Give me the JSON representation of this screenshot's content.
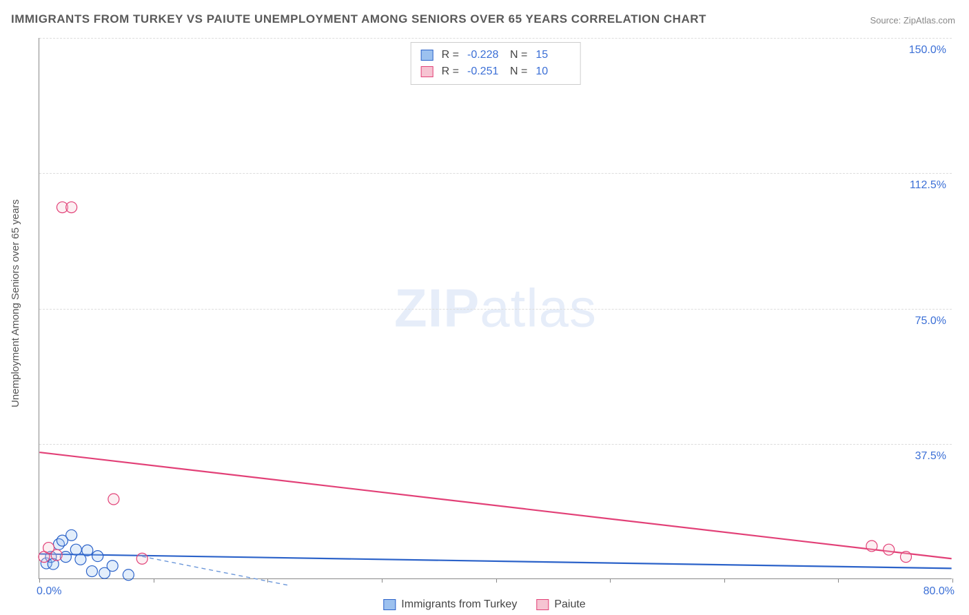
{
  "title": "IMMIGRANTS FROM TURKEY VS PAIUTE UNEMPLOYMENT AMONG SENIORS OVER 65 YEARS CORRELATION CHART",
  "source_label": "Source: ",
  "source_name": "ZipAtlas.com",
  "y_axis_label": "Unemployment Among Seniors over 65 years",
  "watermark_bold": "ZIP",
  "watermark_rest": "atlas",
  "chart": {
    "type": "scatter-correlation",
    "background_color": "#ffffff",
    "grid_color": "#dcdcdc",
    "axis_color": "#888888",
    "text_color": "#555555",
    "value_color": "#3b6fd6",
    "xlim": [
      0,
      80
    ],
    "ylim": [
      0,
      150
    ],
    "x_ticks": [
      0,
      10,
      20,
      30,
      40,
      50,
      60,
      70,
      80
    ],
    "x_tick_labels": [
      "0.0%",
      "",
      "",
      "",
      "",
      "",
      "",
      "",
      "80.0%"
    ],
    "y_ticks": [
      37.5,
      75.0,
      112.5,
      150.0
    ],
    "y_tick_labels": [
      "37.5%",
      "75.0%",
      "112.5%",
      "150.0%"
    ],
    "point_radius": 8,
    "series": [
      {
        "name": "Immigrants from Turkey",
        "fill": "#9cc1ef",
        "stroke": "#2b62c9",
        "r": -0.228,
        "n": 15,
        "trend": {
          "x1": 0,
          "y1": 6.8,
          "x2": 80,
          "y2": 2.8,
          "color": "#2b62c9",
          "width": 2.2,
          "dash": "none"
        },
        "extrap": {
          "x1": 9,
          "y1": 6.1,
          "x2": 22,
          "y2": -2.0,
          "color": "#6a96d9",
          "width": 1.4,
          "dash": "6 5"
        },
        "points": [
          {
            "x": 0.6,
            "y": 4.2
          },
          {
            "x": 1.0,
            "y": 6.0
          },
          {
            "x": 1.2,
            "y": 4.0
          },
          {
            "x": 1.7,
            "y": 9.5
          },
          {
            "x": 2.0,
            "y": 10.5
          },
          {
            "x": 2.3,
            "y": 6.0
          },
          {
            "x": 2.8,
            "y": 12.0
          },
          {
            "x": 3.2,
            "y": 8.0
          },
          {
            "x": 3.6,
            "y": 5.3
          },
          {
            "x": 4.2,
            "y": 7.8
          },
          {
            "x": 4.6,
            "y": 2.0
          },
          {
            "x": 5.1,
            "y": 6.2
          },
          {
            "x": 5.7,
            "y": 1.5
          },
          {
            "x": 6.4,
            "y": 3.5
          },
          {
            "x": 7.8,
            "y": 1.0
          }
        ]
      },
      {
        "name": "Paiute",
        "fill": "#f6c4d2",
        "stroke": "#e24077",
        "r": -0.251,
        "n": 10,
        "trend": {
          "x1": 0,
          "y1": 35.0,
          "x2": 80,
          "y2": 5.5,
          "color": "#e24077",
          "width": 2.2,
          "dash": "none"
        },
        "points": [
          {
            "x": 0.4,
            "y": 6.0
          },
          {
            "x": 0.8,
            "y": 8.5
          },
          {
            "x": 1.5,
            "y": 6.5
          },
          {
            "x": 2.0,
            "y": 103.0
          },
          {
            "x": 2.8,
            "y": 103.0
          },
          {
            "x": 6.5,
            "y": 22.0
          },
          {
            "x": 9.0,
            "y": 5.5
          },
          {
            "x": 73.0,
            "y": 9.0
          },
          {
            "x": 76.0,
            "y": 6.0
          },
          {
            "x": 74.5,
            "y": 8.0
          }
        ]
      }
    ]
  },
  "corr_labels": {
    "R": "R =",
    "N": "N ="
  }
}
